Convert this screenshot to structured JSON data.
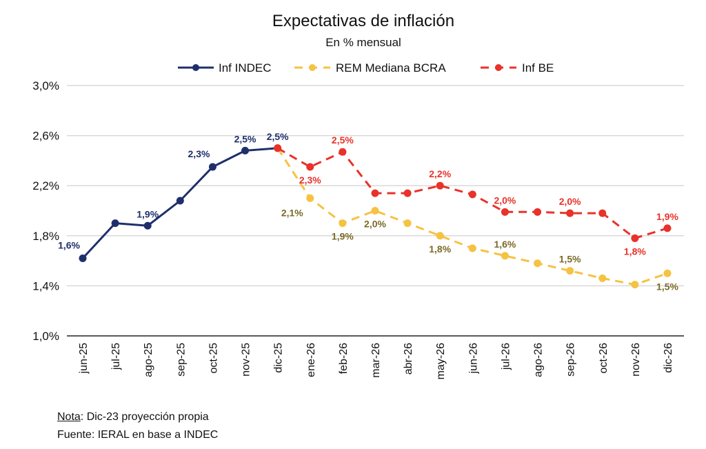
{
  "chart_data": {
    "type": "line",
    "title": "Expectativas de inflación",
    "subtitle": "En % mensual",
    "xlabel": "",
    "ylabel": "",
    "ylim": [
      1.0,
      3.0
    ],
    "yticks": [
      1.0,
      1.4,
      1.8,
      2.2,
      2.6,
      3.0
    ],
    "ytick_labels": [
      "1,0%",
      "1,4%",
      "1,8%",
      "2,2%",
      "2,6%",
      "3,0%"
    ],
    "grid": true,
    "legend_position": "top-center",
    "categories": [
      "jun-25",
      "jul-25",
      "ago-25",
      "sep-25",
      "oct-25",
      "nov-25",
      "dic-25",
      "ene-26",
      "feb-26",
      "mar-26",
      "abr-26",
      "may-26",
      "jun-26",
      "jul-26",
      "ago-26",
      "sep-26",
      "oct-26",
      "nov-26",
      "dic-26"
    ],
    "series": [
      {
        "name": "Inf INDEC",
        "color": "#1f2f6b",
        "style": "solid",
        "values": [
          1.62,
          1.9,
          1.88,
          2.08,
          2.35,
          2.48,
          2.5,
          null,
          null,
          null,
          null,
          null,
          null,
          null,
          null,
          null,
          null,
          null,
          null
        ],
        "labels": [
          {
            "index": 0,
            "text": "1,6%",
            "pos": "above-left"
          },
          {
            "index": 2,
            "text": "1,9%",
            "pos": "above"
          },
          {
            "index": 4,
            "text": "2,3%",
            "pos": "above-left"
          },
          {
            "index": 5,
            "text": "2,5%",
            "pos": "above"
          },
          {
            "index": 6,
            "text": "2,5%",
            "pos": "above"
          }
        ]
      },
      {
        "name": "REM Mediana BCRA",
        "color": "#f5c242",
        "label_color": "#7a6a26",
        "style": "dashed",
        "values": [
          null,
          null,
          null,
          null,
          null,
          null,
          2.5,
          2.1,
          1.9,
          2.0,
          1.9,
          1.8,
          1.7,
          1.64,
          1.58,
          1.52,
          1.46,
          1.41,
          1.5
        ],
        "labels": [
          {
            "index": 7,
            "text": "2,1%",
            "pos": "below-left"
          },
          {
            "index": 8,
            "text": "1,9%",
            "pos": "below"
          },
          {
            "index": 9,
            "text": "2,0%",
            "pos": "below"
          },
          {
            "index": 11,
            "text": "1,8%",
            "pos": "below"
          },
          {
            "index": 13,
            "text": "1,6%",
            "pos": "above"
          },
          {
            "index": 15,
            "text": "1,5%",
            "pos": "above"
          },
          {
            "index": 18,
            "text": "1,5%",
            "pos": "below"
          }
        ]
      },
      {
        "name": "Inf BE",
        "color": "#e8322a",
        "label_color": "#e8322a",
        "style": "dashed",
        "values": [
          null,
          null,
          null,
          null,
          null,
          null,
          2.5,
          2.35,
          2.47,
          2.14,
          2.14,
          2.2,
          2.13,
          1.99,
          1.99,
          1.98,
          1.98,
          1.78,
          1.86
        ],
        "labels": [
          {
            "index": 7,
            "text": "2,3%",
            "pos": "below"
          },
          {
            "index": 8,
            "text": "2,5%",
            "pos": "above"
          },
          {
            "index": 11,
            "text": "2,2%",
            "pos": "above"
          },
          {
            "index": 13,
            "text": "2,0%",
            "pos": "above"
          },
          {
            "index": 15,
            "text": "2,0%",
            "pos": "above"
          },
          {
            "index": 17,
            "text": "1,8%",
            "pos": "below"
          },
          {
            "index": 18,
            "text": "1,9%",
            "pos": "above"
          }
        ]
      }
    ]
  },
  "notes": {
    "nota_label": "Nota",
    "nota_text": ": Dic-23 proyección propia",
    "fuente_text": "Fuente: IERAL en base a INDEC"
  }
}
